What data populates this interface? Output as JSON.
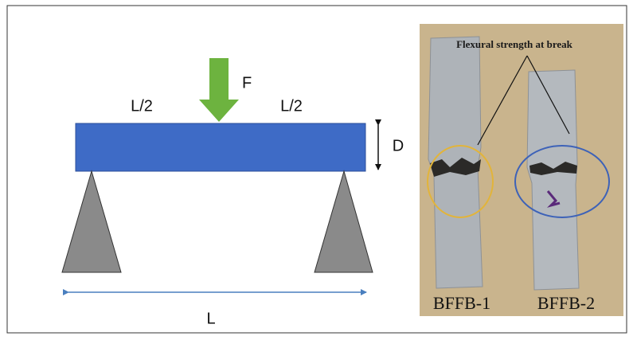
{
  "diagram": {
    "force_label": "F",
    "half_span_labels": [
      "L/2",
      "L/2"
    ],
    "depth_label": "D",
    "span_label": "L"
  },
  "photo": {
    "annotation": "Flexural strength at break",
    "specimens": [
      "BFFB-1",
      "BFFB-2"
    ]
  }
}
